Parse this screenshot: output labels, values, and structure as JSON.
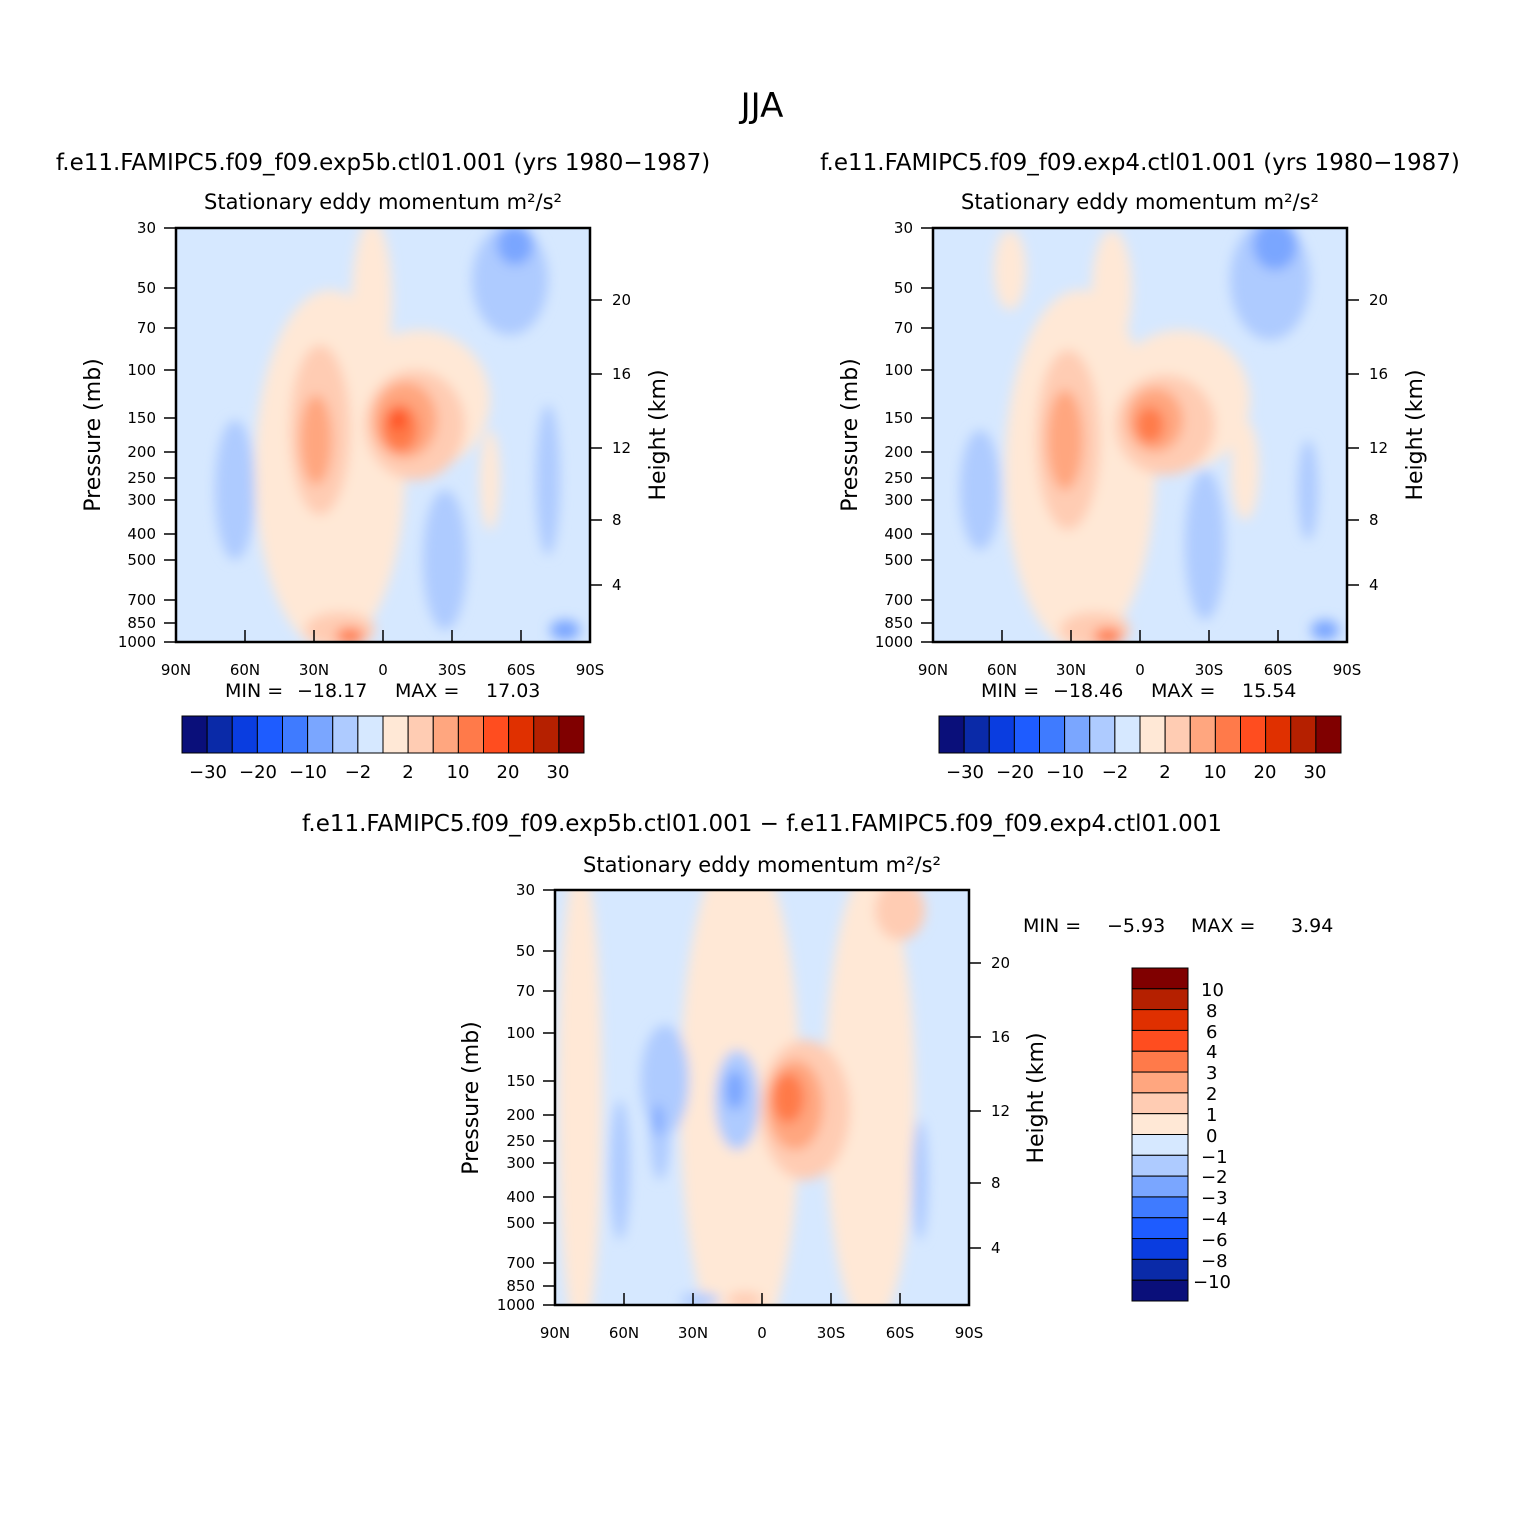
{
  "figure_title": "JJA",
  "colors": {
    "levels": [
      "#0a0f7a",
      "#0a2aa8",
      "#0a3de0",
      "#1e5cff",
      "#3f7bff",
      "#7aa6ff",
      "#aecbff",
      "#d6e8ff",
      "#ffe8d6",
      "#ffccb3",
      "#ffa67f",
      "#ff7a4a",
      "#ff4d1f",
      "#e03000",
      "#b52000",
      "#800000"
    ]
  },
  "chart_data": [
    {
      "type": "heatmap",
      "panel": "top-left",
      "case_title": "f.e11.FAMIPC5.f09_f09.exp5b.ctl01.001 (yrs 1980−1987)",
      "title": "Stationary eddy momentum  m²/s²",
      "ylabel": "Pressure (mb)",
      "y2label": "Height (km)",
      "x_ticks": [
        "90N",
        "60N",
        "30N",
        "0",
        "30S",
        "60S",
        "90S"
      ],
      "y_ticks": [
        "30",
        "50",
        "70",
        "100",
        "150",
        "200",
        "250",
        "300",
        "400",
        "500",
        "700",
        "850",
        "1000"
      ],
      "y2_ticks": [
        "20",
        "16",
        "12",
        "8",
        "4"
      ],
      "min_label": "MIN =",
      "min_value": "−18.17",
      "max_label": "MAX =",
      "max_value": "17.03",
      "colorbar_labels": [
        "−30",
        "−20",
        "−10",
        "−2",
        "2",
        "10",
        "20",
        "30"
      ]
    },
    {
      "type": "heatmap",
      "panel": "top-right",
      "case_title": "f.e11.FAMIPC5.f09_f09.exp4.ctl01.001 (yrs 1980−1987)",
      "title": "Stationary eddy momentum  m²/s²",
      "ylabel": "Pressure (mb)",
      "y2label": "Height (km)",
      "x_ticks": [
        "90N",
        "60N",
        "30N",
        "0",
        "30S",
        "60S",
        "90S"
      ],
      "y_ticks": [
        "30",
        "50",
        "70",
        "100",
        "150",
        "200",
        "250",
        "300",
        "400",
        "500",
        "700",
        "850",
        "1000"
      ],
      "y2_ticks": [
        "20",
        "16",
        "12",
        "8",
        "4"
      ],
      "min_label": "MIN =",
      "min_value": "−18.46",
      "max_label": "MAX =",
      "max_value": "15.54",
      "colorbar_labels": [
        "−30",
        "−20",
        "−10",
        "−2",
        "2",
        "10",
        "20",
        "30"
      ]
    },
    {
      "type": "heatmap",
      "panel": "bottom",
      "case_title": "f.e11.FAMIPC5.f09_f09.exp5b.ctl01.001 − f.e11.FAMIPC5.f09_f09.exp4.ctl01.001",
      "title": "Stationary eddy momentum  m²/s²",
      "ylabel": "Pressure (mb)",
      "y2label": "Height (km)",
      "x_ticks": [
        "90N",
        "60N",
        "30N",
        "0",
        "30S",
        "60S",
        "90S"
      ],
      "y_ticks": [
        "30",
        "50",
        "70",
        "100",
        "150",
        "200",
        "250",
        "300",
        "400",
        "500",
        "700",
        "850",
        "1000"
      ],
      "y2_ticks": [
        "20",
        "16",
        "12",
        "8",
        "4"
      ],
      "min_label": "MIN =",
      "min_value": "−5.93",
      "max_label": "MAX =",
      "max_value": "3.94",
      "colorbar_labels": [
        "10",
        "8",
        "6",
        "4",
        "3",
        "2",
        "1",
        "0",
        "−1",
        "−2",
        "−3",
        "−4",
        "−6",
        "−8",
        "−10"
      ]
    }
  ]
}
